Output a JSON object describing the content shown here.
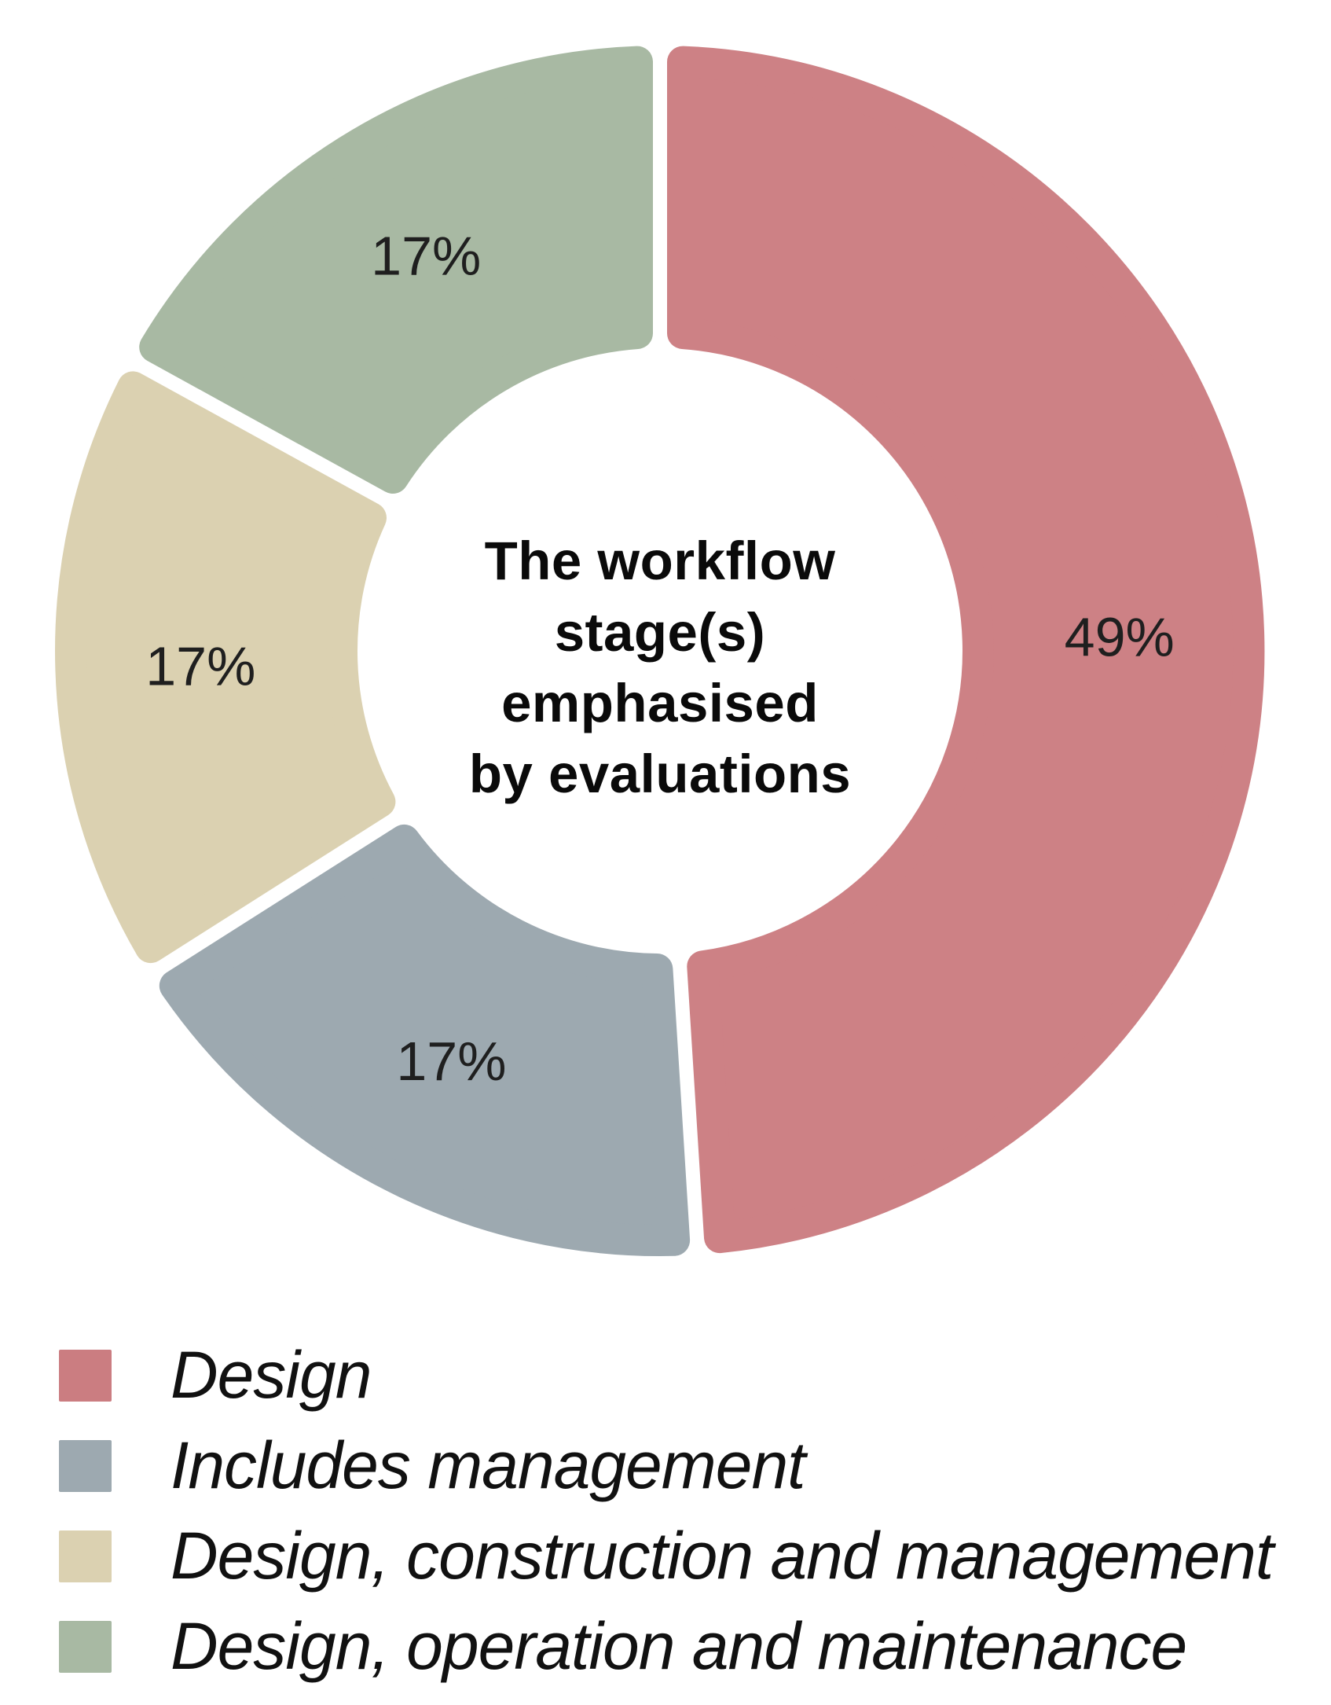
{
  "figure": {
    "background": "#ffffff"
  },
  "chart_data": {
    "type": "pie",
    "subtype": "donut",
    "title": "The workflow stage(s) emphasised by evaluations",
    "center_title": "The workflow\nstage(s)\nemphasised\nby evaluations",
    "start_angle_deg": 0,
    "direction": "clockwise",
    "unit": "%",
    "legend_position": "bottom-left",
    "categories": [
      "Design",
      "Includes management",
      "Design, construction and management",
      "Design, operation and maintenance"
    ],
    "values": [
      49,
      17,
      17,
      17
    ],
    "slices": [
      {
        "label": "Design",
        "value": 49,
        "value_label": "49%",
        "color": "#cd8185"
      },
      {
        "label": "Includes management",
        "value": 17,
        "value_label": "17%",
        "color": "#9da9b0"
      },
      {
        "label": "Design, construction and management",
        "value": 17,
        "value_label": "17%",
        "color": "#dbd1b1"
      },
      {
        "label": "Design, operation and maintenance",
        "value": 17,
        "value_label": "17%",
        "color": "#a8b9a3"
      }
    ],
    "colors": {
      "slice_value_text": "#1f1f1f",
      "center_title_text": "#0a0a0a"
    }
  },
  "legend": {
    "items": [
      {
        "label": "Design",
        "color": "#cb7d81"
      },
      {
        "label": "Includes management",
        "color": "#9da9b0"
      },
      {
        "label": "Design, construction and management",
        "color": "#dbd1b1"
      },
      {
        "label": "Design, operation and maintenance",
        "color": "#a8b9a3"
      }
    ]
  }
}
